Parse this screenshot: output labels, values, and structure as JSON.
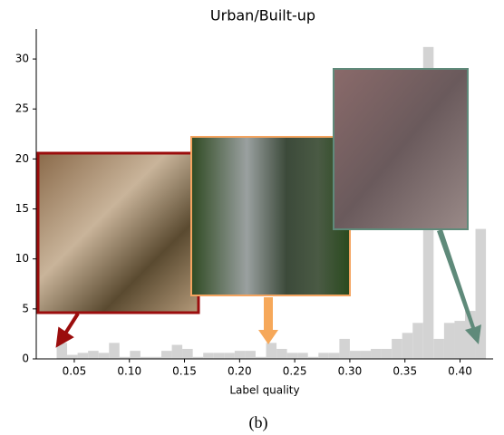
{
  "chart_data": {
    "type": "histogram",
    "title": "Urban/Built-up",
    "xlabel": "Label quality",
    "caption": "(b)",
    "color": "#d3d3d3",
    "bins": [
      0.034,
      0.0435,
      0.053,
      0.0625,
      0.072,
      0.0815,
      0.091,
      0.1005,
      0.11,
      0.1195,
      0.129,
      0.1385,
      0.148,
      0.1575,
      0.167,
      0.1765,
      0.186,
      0.1955,
      0.205,
      0.2145,
      0.224,
      0.2335,
      0.243,
      0.2525,
      0.262,
      0.2715,
      0.281,
      0.2905,
      0.3,
      0.3095,
      0.319,
      0.3285,
      0.338,
      0.3475,
      0.357,
      0.3665,
      0.376,
      0.3855,
      0.395,
      0.4045,
      0.414,
      0.4235
    ],
    "values": [
      1.6,
      0.4,
      0.6,
      0.8,
      0.6,
      1.6,
      0.2,
      0.8,
      0.2,
      0.2,
      0.8,
      1.4,
      1.0,
      0.2,
      0.6,
      0.6,
      0.6,
      0.8,
      0.8,
      0.2,
      1.6,
      1.0,
      0.6,
      0.6,
      0.2,
      0.6,
      0.6,
      2.0,
      0.8,
      0.8,
      1.0,
      1.0,
      2.0,
      2.6,
      3.6,
      31.2,
      2.0,
      3.6,
      3.8,
      4.8,
      13.0
    ],
    "xlim": [
      0.0155,
      0.43
    ],
    "ylim": [
      0,
      33
    ],
    "xticks": [
      0.05,
      {
        "value": 0.1,
        "label": "0.10"
      },
      0.15,
      {
        "value": 0.2,
        "label": "0.20"
      },
      0.25,
      {
        "value": 0.3,
        "label": "0.30"
      },
      0.35,
      {
        "value": 0.4,
        "label": "0.40"
      }
    ],
    "yticks": [
      0,
      5,
      10,
      15,
      20,
      25,
      30
    ]
  }
}
